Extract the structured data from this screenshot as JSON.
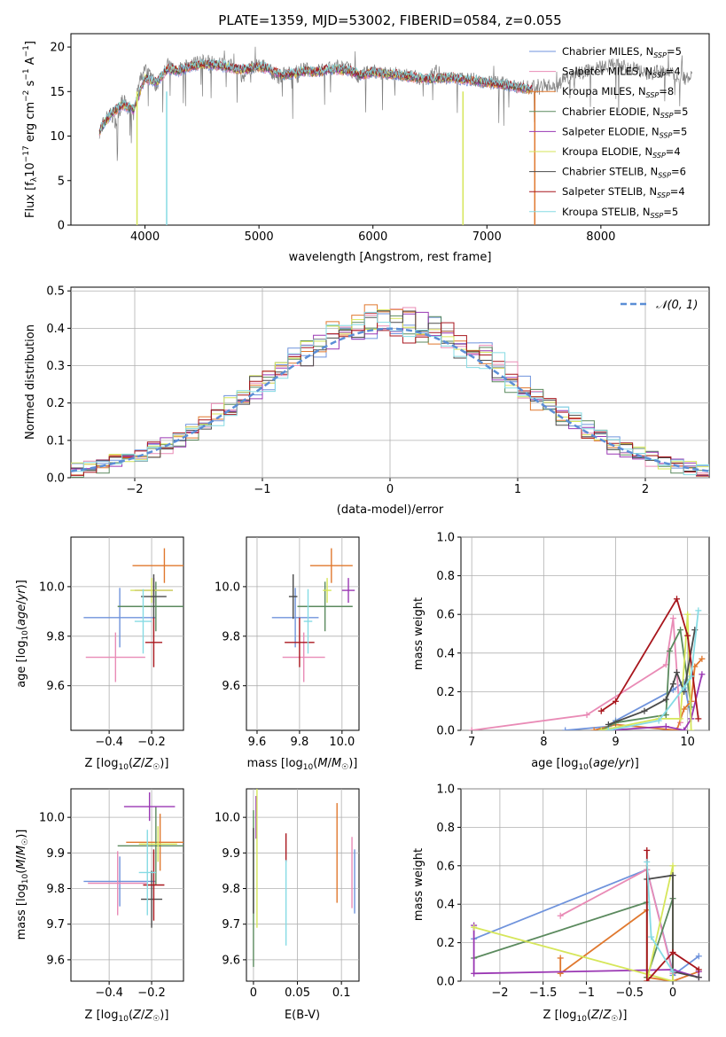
{
  "figure": {
    "title": "PLATE=1359, MJD=53002, FIBERID=0584, z=0.055"
  },
  "legend_series": [
    {
      "name": "Chabrier MILES, N_SSP=5",
      "color": "#6f93dc"
    },
    {
      "name": "Salpeter MILES, N_SSP=4",
      "color": "#e98bb6"
    },
    {
      "name": "Kroupa MILES, N_SSP=8",
      "color": "#e0782e"
    },
    {
      "name": "Chabrier ELODIE, N_SSP=5",
      "color": "#5b8a5e"
    },
    {
      "name": "Salpeter ELODIE, N_SSP=5",
      "color": "#9a37b3"
    },
    {
      "name": "Kroupa ELODIE, N_SSP=4",
      "color": "#d6e65a"
    },
    {
      "name": "Chabrier STELIB, N_SSP=6",
      "color": "#4a4a4a"
    },
    {
      "name": "Salpeter STELIB, N_SSP=4",
      "color": "#a8161d"
    },
    {
      "name": "Kroupa STELIB, N_SSP=5",
      "color": "#86dbe4"
    }
  ],
  "chart_data": [
    {
      "id": "spectrum",
      "type": "line",
      "title": "PLATE=1359, MJD=53002, FIBERID=0584, z=0.055",
      "xlabel": "wavelength [Angstrom, rest frame]",
      "ylabel": "Flux [fλ10^-17 erg cm^-2 s^-1 A^-1]",
      "xlim": [
        3350,
        8950
      ],
      "ylim": [
        0,
        21.5
      ],
      "xticks": [
        4000,
        5000,
        6000,
        7000,
        8000
      ],
      "yticks": [
        0,
        5,
        10,
        15,
        20
      ],
      "data_color": "#808080",
      "observed_x": [
        3600,
        3650,
        3700,
        3750,
        3800,
        3850,
        3900,
        3950,
        4000,
        4050,
        4100,
        4150,
        4200,
        4300,
        4400,
        4500,
        4600,
        4700,
        4800,
        4860,
        4900,
        5000,
        5100,
        5175,
        5200,
        5300,
        5400,
        5500,
        5600,
        5700,
        5800,
        5890,
        5900,
        6000,
        6100,
        6200,
        6300,
        6400,
        6500,
        6563,
        6600,
        6700,
        6800,
        6900,
        7000,
        7100,
        7200,
        7300,
        7400,
        7500,
        7600,
        7700,
        7800,
        7900,
        8000,
        8100,
        8200,
        8300,
        8400,
        8500,
        8600,
        8700,
        8800
      ],
      "observed_y": [
        10.5,
        12.0,
        12.5,
        11.5,
        14.0,
        13.5,
        12.5,
        16.0,
        17.5,
        17.0,
        15.5,
        17.5,
        18.0,
        17.5,
        18.0,
        18.5,
        18.3,
        18.0,
        17.8,
        16.5,
        17.5,
        18.0,
        17.5,
        16.0,
        17.0,
        17.2,
        17.5,
        17.3,
        17.5,
        17.8,
        17.5,
        16.5,
        17.0,
        17.3,
        17.0,
        17.0,
        16.8,
        16.5,
        16.5,
        17.5,
        16.5,
        16.5,
        16.5,
        16.3,
        16.0,
        16.0,
        15.8,
        15.5,
        15.5,
        15.8,
        15.5,
        16.5,
        17.0,
        17.5,
        17.8,
        18.0,
        17.8,
        17.5,
        17.0,
        17.2,
        17.0,
        16.5,
        16.5
      ],
      "model_x": [
        3600,
        3700,
        3800,
        3900,
        4000,
        4100,
        4200,
        4300,
        4400,
        4500,
        4600,
        4700,
        4800,
        4900,
        5000,
        5100,
        5200,
        5300,
        5400,
        5500,
        5600,
        5700,
        5800,
        5900,
        6000,
        6100,
        6200,
        6300,
        6400,
        6500,
        6600,
        6700,
        6800,
        6900,
        7000,
        7100,
        7200,
        7300,
        7400
      ],
      "model_y": [
        10.5,
        12.5,
        13.5,
        13.0,
        16.5,
        16.0,
        17.5,
        17.3,
        17.8,
        18.0,
        18.0,
        17.8,
        17.5,
        17.5,
        17.8,
        17.5,
        16.8,
        17.0,
        17.3,
        17.2,
        17.4,
        17.5,
        17.3,
        16.8,
        17.2,
        17.0,
        16.9,
        16.7,
        16.5,
        16.4,
        16.5,
        16.5,
        16.3,
        16.2,
        16.0,
        15.8,
        15.6,
        15.4,
        15.2
      ]
    },
    {
      "id": "residual_hist",
      "type": "bar",
      "xlabel": "(data-model)/error",
      "ylabel": "Normed distribution",
      "xlim": [
        -2.5,
        2.5
      ],
      "ylim": [
        0,
        0.51
      ],
      "xticks": [
        -2,
        -1,
        0,
        1,
        2
      ],
      "yticks": [
        0.0,
        0.1,
        0.2,
        0.3,
        0.4,
        0.5
      ],
      "reference_curve": "N(0,1)",
      "reference_color": "#5b8ed6",
      "bin_width": 0.1
    },
    {
      "id": "age_vs_Z",
      "type": "scatter",
      "xlabel": "Z [log10(Z/Z☉)]",
      "ylabel": "age  [log10(age/yr)]",
      "xlim": [
        -0.58,
        -0.05
      ],
      "ylim": [
        9.42,
        10.2
      ],
      "xticks": [
        -0.4,
        -0.2
      ],
      "yticks": [
        9.6,
        9.8,
        10.0
      ],
      "points": [
        {
          "x": -0.35,
          "y": 9.875,
          "xerr": 0.17,
          "yerr": 0.12
        },
        {
          "x": -0.37,
          "y": 9.715,
          "xerr": 0.14,
          "yerr": 0.1
        },
        {
          "x": -0.14,
          "y": 10.085,
          "xerr": 0.15,
          "yerr": 0.07
        },
        {
          "x": -0.18,
          "y": 9.92,
          "xerr": 0.18,
          "yerr": 0.1
        },
        {
          "x": -0.19,
          "y": 9.985,
          "xerr": 0.09,
          "yerr": 0.05
        },
        {
          "x": -0.2,
          "y": 9.985,
          "xerr": 0.1,
          "yerr": 0.05
        },
        {
          "x": -0.19,
          "y": 9.96,
          "xerr": 0.06,
          "yerr": 0.09
        },
        {
          "x": -0.19,
          "y": 9.775,
          "xerr": 0.04,
          "yerr": 0.1
        },
        {
          "x": -0.24,
          "y": 9.86,
          "xerr": 0.04,
          "yerr": 0.13
        }
      ]
    },
    {
      "id": "age_vs_mass",
      "type": "scatter",
      "xlabel": "mass [log10(M/M☉)]",
      "ylabel": "",
      "xlim": [
        9.55,
        10.08
      ],
      "ylim": [
        9.42,
        10.2
      ],
      "xticks": [
        9.6,
        9.8,
        10.0
      ],
      "yticks": [
        9.6,
        9.8,
        10.0
      ],
      "points": [
        {
          "x": 9.78,
          "y": 9.875,
          "xerr": 0.11,
          "yerr": 0.12
        },
        {
          "x": 9.82,
          "y": 9.715,
          "xerr": 0.1,
          "yerr": 0.1
        },
        {
          "x": 9.95,
          "y": 10.085,
          "xerr": 0.1,
          "yerr": 0.07
        },
        {
          "x": 9.92,
          "y": 9.92,
          "xerr": 0.13,
          "yerr": 0.1
        },
        {
          "x": 10.03,
          "y": 9.985,
          "xerr": 0.03,
          "yerr": 0.05
        },
        {
          "x": 9.93,
          "y": 9.985,
          "xerr": 0.02,
          "yerr": 0.05
        },
        {
          "x": 9.77,
          "y": 9.96,
          "xerr": 0.02,
          "yerr": 0.09
        },
        {
          "x": 9.8,
          "y": 9.775,
          "xerr": 0.07,
          "yerr": 0.1
        },
        {
          "x": 9.84,
          "y": 9.86,
          "xerr": 0.02,
          "yerr": 0.13
        }
      ]
    },
    {
      "id": "mass_weight_vs_age",
      "type": "line",
      "xlabel": "age  [log10(age/yr)]",
      "ylabel": "mass weight",
      "xlim": [
        6.85,
        10.3
      ],
      "ylim": [
        0,
        1.0
      ],
      "xticks": [
        7,
        8,
        9,
        10
      ],
      "yticks": [
        0.0,
        0.2,
        0.4,
        0.6,
        0.8,
        1.0
      ],
      "series_points": [
        {
          "x": [
            8.3,
            8.9,
            9.0,
            9.8,
            9.95,
            10.05
          ],
          "y": [
            0.0,
            0.02,
            0.05,
            0.21,
            0.25,
            0.06
          ]
        },
        {
          "x": [
            7.0,
            8.6,
            9.7,
            9.8,
            9.9
          ],
          "y": [
            0.0,
            0.08,
            0.34,
            0.58,
            0.04
          ]
        },
        {
          "x": [
            8.7,
            9.0,
            9.85,
            9.95,
            10.05,
            10.1,
            10.2
          ],
          "y": [
            0.0,
            0.03,
            0.0,
            0.11,
            0.15,
            0.33,
            0.37
          ]
        },
        {
          "x": [
            8.8,
            9.0,
            9.7,
            9.75,
            9.9,
            10.05
          ],
          "y": [
            0.0,
            0.04,
            0.08,
            0.41,
            0.52,
            0.12
          ]
        },
        {
          "x": [
            8.9,
            9.7,
            9.95,
            10.05,
            10.2
          ],
          "y": [
            0.0,
            0.02,
            0.0,
            0.06,
            0.29
          ]
        },
        {
          "x": [
            8.8,
            9.6,
            9.9,
            10.0,
            10.05
          ],
          "y": [
            0.0,
            0.06,
            0.06,
            0.6,
            0.0
          ]
        },
        {
          "x": [
            8.9,
            9.4,
            9.7,
            9.8,
            9.85,
            9.95,
            10.1
          ],
          "y": [
            0.03,
            0.1,
            0.16,
            0.24,
            0.3,
            0.2,
            0.52
          ]
        },
        {
          "x": [
            8.8,
            9.0,
            9.85,
            10.0,
            10.15
          ],
          "y": [
            0.1,
            0.15,
            0.68,
            0.49,
            0.06
          ]
        },
        {
          "x": [
            8.9,
            9.6,
            9.95,
            10.05,
            10.15
          ],
          "y": [
            0.0,
            0.05,
            0.22,
            0.28,
            0.62
          ]
        }
      ]
    },
    {
      "id": "mass_vs_Z",
      "type": "scatter",
      "xlabel": "Z [log10(Z/Z☉)]",
      "ylabel": "mass [log10(M/M☉)]",
      "xlim": [
        -0.58,
        -0.05
      ],
      "ylim": [
        9.54,
        10.08
      ],
      "xticks": [
        -0.4,
        -0.2
      ],
      "yticks": [
        9.6,
        9.7,
        9.8,
        9.9,
        10.0
      ],
      "points": [
        {
          "x": -0.35,
          "y": 9.82,
          "xerr": 0.17,
          "yerr": 0.07
        },
        {
          "x": -0.36,
          "y": 9.815,
          "xerr": 0.14,
          "yerr": 0.09
        },
        {
          "x": -0.16,
          "y": 9.93,
          "xerr": 0.16,
          "yerr": 0.08
        },
        {
          "x": -0.18,
          "y": 9.92,
          "xerr": 0.18,
          "yerr": 0.11
        },
        {
          "x": -0.21,
          "y": 10.03,
          "xerr": 0.12,
          "yerr": 0.04
        },
        {
          "x": -0.17,
          "y": 9.925,
          "xerr": 0.09,
          "yerr": 0.05
        },
        {
          "x": -0.2,
          "y": 9.77,
          "xerr": 0.05,
          "yerr": 0.08
        },
        {
          "x": -0.19,
          "y": 9.81,
          "xerr": 0.05,
          "yerr": 0.1
        },
        {
          "x": -0.22,
          "y": 9.845,
          "xerr": 0.04,
          "yerr": 0.12
        }
      ]
    },
    {
      "id": "mass_vs_ebv",
      "type": "scatter",
      "xlabel": "E(B-V)",
      "ylabel": "",
      "xlim": [
        -0.008,
        0.12
      ],
      "ylim": [
        9.54,
        10.08
      ],
      "xticks": [
        0.0,
        0.05,
        0.1
      ],
      "yticks": [
        9.6,
        9.7,
        9.8,
        9.9,
        10.0
      ],
      "points": [
        {
          "x": 0.115,
          "y": 9.82,
          "yerr": 0.09
        },
        {
          "x": 0.112,
          "y": 9.845,
          "yerr": 0.1
        },
        {
          "x": 0.095,
          "y": 9.9,
          "yerr": 0.14
        },
        {
          "x": 0.0,
          "y": 9.8,
          "yerr": 0.22
        },
        {
          "x": 0.003,
          "y": 10.0,
          "yerr": 0.06
        },
        {
          "x": 0.004,
          "y": 9.93,
          "yerr": 0.24
        },
        {
          "x": 0.0,
          "y": 9.85,
          "yerr": 0.12
        },
        {
          "x": 0.037,
          "y": 9.915,
          "yerr": 0.04
        },
        {
          "x": 0.037,
          "y": 9.76,
          "yerr": 0.12
        }
      ]
    },
    {
      "id": "mass_weight_vs_Z",
      "type": "line",
      "xlabel": "Z [log10(Z/Z☉)]",
      "ylabel": "mass weight",
      "xlim": [
        -2.45,
        0.42
      ],
      "ylim": [
        0,
        1.0
      ],
      "xticks": [
        -2.0,
        -1.5,
        -1.0,
        -0.5,
        0.0
      ],
      "yticks": [
        0.0,
        0.2,
        0.4,
        0.6,
        0.8,
        1.0
      ],
      "series_points": [
        {
          "x": [
            -2.3,
            -0.3,
            0.0,
            0.0,
            0.3
          ],
          "y": [
            0.22,
            0.58,
            0.05,
            0.03,
            0.13
          ]
        },
        {
          "x": [
            -1.3,
            -0.3,
            0.0
          ],
          "y": [
            0.34,
            0.58,
            0.04
          ]
        },
        {
          "x": [
            -1.3,
            -1.3,
            -0.3,
            -0.3,
            0.0,
            0.3
          ],
          "y": [
            0.12,
            0.04,
            0.37,
            0.02,
            0.0,
            0.05
          ]
        },
        {
          "x": [
            -2.3,
            -0.3,
            -0.3,
            0.0,
            0.0
          ],
          "y": [
            0.12,
            0.41,
            0.02,
            0.43,
            0.0
          ]
        },
        {
          "x": [
            -2.3,
            -2.3,
            0.0,
            0.3,
            0.3
          ],
          "y": [
            0.29,
            0.04,
            0.06,
            0.02,
            0.05
          ]
        },
        {
          "x": [
            -2.3,
            0.0,
            0.0,
            -0.3
          ],
          "y": [
            0.28,
            0.0,
            0.6,
            0.0
          ]
        },
        {
          "x": [
            -0.3,
            0.0,
            0.0,
            0.3
          ],
          "y": [
            0.53,
            0.55,
            0.05,
            0.02
          ]
        },
        {
          "x": [
            -0.3,
            -0.3,
            0.0,
            0.3
          ],
          "y": [
            0.68,
            0.0,
            0.15,
            0.06
          ]
        },
        {
          "x": [
            -0.3,
            -0.25,
            0.0
          ],
          "y": [
            0.62,
            0.23,
            0.05
          ]
        }
      ]
    }
  ]
}
